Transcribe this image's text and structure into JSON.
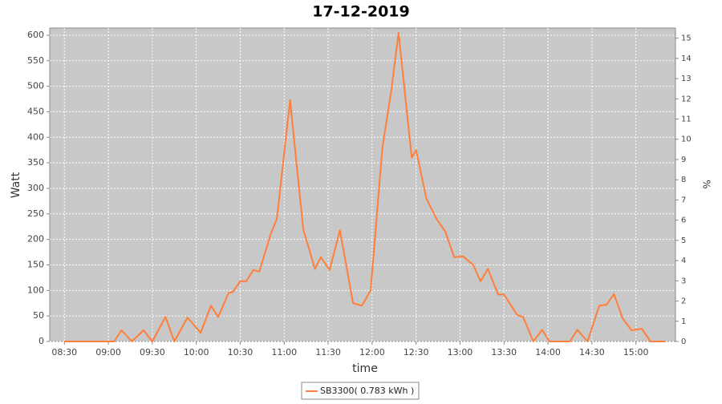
{
  "chart_data": {
    "type": "line",
    "title": "17-12-2019",
    "x_label": "time",
    "y_label": "Watt",
    "y2_label": "%",
    "x": [
      "08:30",
      "09:00",
      "09:04",
      "09:09",
      "09:16",
      "09:24",
      "09:30",
      "09:39",
      "09:45",
      "09:54",
      "10:03",
      "10:10",
      "10:15",
      "10:22",
      "10:25",
      "10:30",
      "10:34",
      "10:39",
      "10:43",
      "10:51",
      "10:55",
      "11:04",
      "11:13",
      "11:21",
      "11:25",
      "11:31",
      "11:38",
      "11:47",
      "11:53",
      "11:59",
      "12:07",
      "12:13",
      "12:18",
      "12:27",
      "12:30",
      "12:37",
      "12:44",
      "12:50",
      "12:56",
      "13:02",
      "13:09",
      "13:14",
      "13:19",
      "13:26",
      "13:30",
      "13:39",
      "13:43",
      "13:50",
      "13:56",
      "14:01",
      "14:15",
      "14:20",
      "14:27",
      "14:35",
      "14:40",
      "14:45",
      "14:51",
      "14:57",
      "15:04",
      "15:10",
      "15:20"
    ],
    "series": [
      {
        "name": "SB3300( 0.783 kWh )",
        "color": "#ff7f3a",
        "values": [
          0,
          0,
          0,
          22,
          0,
          22,
          0,
          48,
          0,
          47,
          17,
          70,
          48,
          95,
          97,
          118,
          118,
          140,
          137,
          212,
          240,
          473,
          220,
          142,
          165,
          140,
          218,
          75,
          70,
          100,
          380,
          490,
          605,
          360,
          375,
          280,
          240,
          215,
          165,
          167,
          150,
          118,
          142,
          92,
          92,
          52,
          48,
          0,
          23,
          0,
          0,
          23,
          0,
          70,
          72,
          93,
          45,
          22,
          25,
          0,
          0
        ]
      }
    ],
    "xlim": [
      "08:20",
      "15:27"
    ],
    "xticks": [
      "08:30",
      "09:00",
      "09:30",
      "10:00",
      "10:30",
      "11:00",
      "11:30",
      "12:00",
      "12:30",
      "13:00",
      "13:30",
      "14:00",
      "14:30",
      "15:00"
    ],
    "ylim": [
      0,
      614
    ],
    "yticks": [
      0,
      50,
      100,
      150,
      200,
      250,
      300,
      350,
      400,
      450,
      500,
      550,
      600
    ],
    "y2lim": [
      0,
      15.5
    ],
    "y2ticks": [
      0,
      1,
      2,
      3,
      4,
      5,
      6,
      7,
      8,
      9,
      10,
      11,
      12,
      13,
      14,
      15
    ],
    "grid": true,
    "legend": "bottom"
  }
}
